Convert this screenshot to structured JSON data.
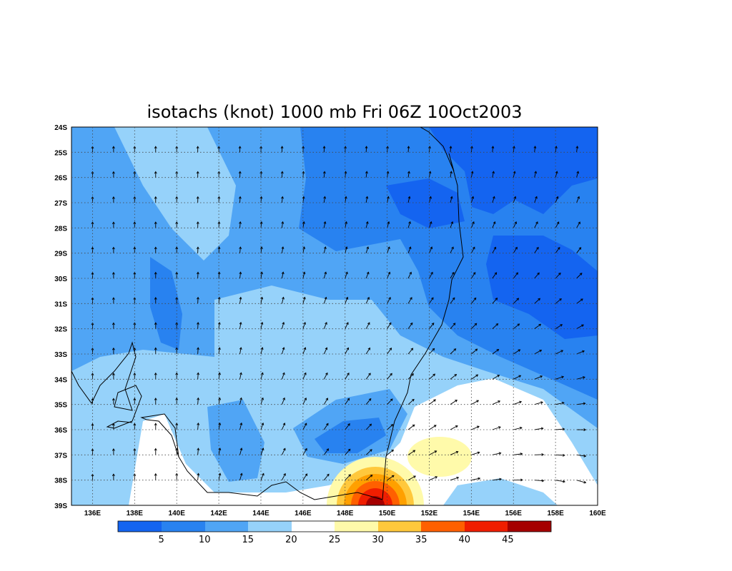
{
  "title": "isotachs (knot) 1000 mb Fri 06Z 10Oct2003",
  "latitude_labels": [
    "24S",
    "25S",
    "26S",
    "27S",
    "28S",
    "29S",
    "30S",
    "31S",
    "32S",
    "33S",
    "34S",
    "35S",
    "36S",
    "37S",
    "38S",
    "39S"
  ],
  "longitude_labels": [
    "136E",
    "138E",
    "140E",
    "142E",
    "144E",
    "146E",
    "148E",
    "150E",
    "152E",
    "154E",
    "156E",
    "158E",
    "160E"
  ],
  "colorbar": {
    "levels": [
      5,
      10,
      15,
      20,
      25,
      30,
      35,
      40,
      45
    ]
  }
}
